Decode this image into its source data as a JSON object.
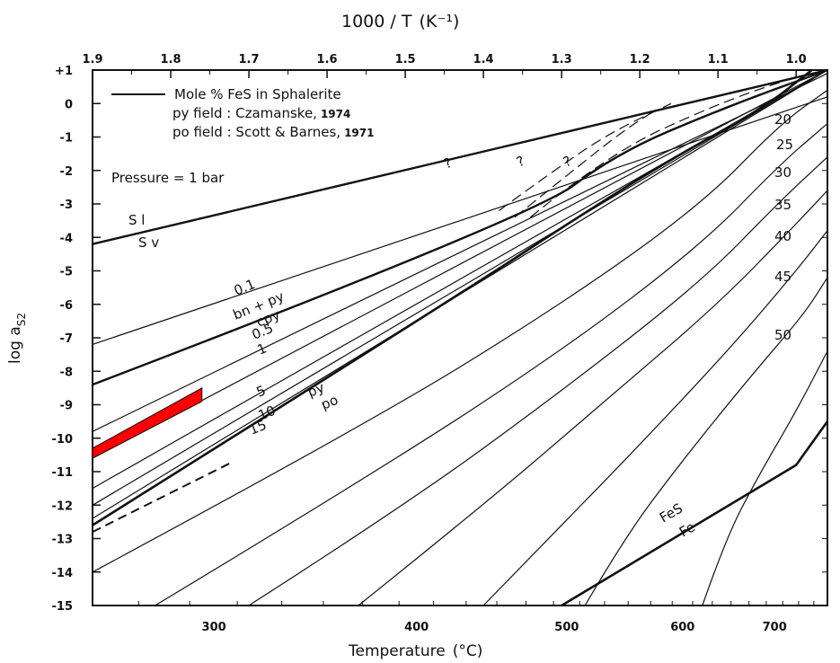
{
  "chart_data": {
    "type": "line",
    "xlabel_bottom": "Temperature",
    "xlabel_bottom_unit": "(°C)",
    "xlabel_top": "1000 / T",
    "xlabel_top_unit": "(K⁻¹)",
    "ylabel": "log a",
    "ylabel_sub": "S2",
    "xlim_inverse_T": [
      1.9,
      0.96
    ],
    "ylim": [
      -15,
      1
    ],
    "top_ticks": [
      1.9,
      1.8,
      1.7,
      1.6,
      1.5,
      1.4,
      1.3,
      1.2,
      1.1,
      1.0
    ],
    "top_tick_labels": [
      "1.9",
      "1.8",
      "1.7",
      "1.6",
      "1.5",
      "1.4",
      "1.3",
      "1.2",
      "1.1",
      "1.0"
    ],
    "bottom_ticks": [
      300,
      400,
      500,
      600,
      700
    ],
    "bottom_tick_labels": [
      "300",
      "400",
      "500",
      "600",
      "700"
    ],
    "y_ticks": [
      1,
      0,
      -1,
      -2,
      -3,
      -4,
      -5,
      -6,
      -7,
      -8,
      -9,
      -10,
      -11,
      -12,
      -13,
      -14,
      -15
    ],
    "y_tick_labels": [
      "+1",
      "0",
      "-1",
      "-2",
      "-3",
      "-4",
      "-5",
      "-6",
      "-7",
      "-8",
      "-9",
      "-10",
      "-11",
      "-12",
      "-13",
      "-14",
      "-15"
    ],
    "legend": {
      "line_label": "Mole % FeS in Sphalerite",
      "py_label": "py  field : Czamanske,",
      "py_year": "1974",
      "po_label": "po  field : Scott & Barnes,",
      "po_year": "1971",
      "pressure": "Pressure = 1 bar"
    },
    "boundaries": [
      {
        "labels": [
          "S l",
          "S v"
        ],
        "points": [
          [
            1.9,
            -4.2
          ],
          [
            0.96,
            1.0
          ]
        ]
      },
      {
        "labels": [
          "bn + py",
          "cpy"
        ],
        "points": [
          [
            1.9,
            -8.4
          ],
          [
            1.34,
            -3.4
          ],
          [
            1.23,
            -1.5
          ],
          [
            1.1,
            -0.2
          ],
          [
            0.96,
            1.0
          ]
        ]
      },
      {
        "labels": [
          "py",
          "po"
        ],
        "points": [
          [
            1.9,
            -12.6
          ],
          [
            1.45,
            -6.0
          ],
          [
            1.24,
            -2.8
          ],
          [
            1.14,
            -1.4
          ],
          [
            1.04,
            -0.1
          ],
          [
            0.98,
            1.0
          ]
        ]
      },
      {
        "labels": [
          "FeS",
          "Fe"
        ],
        "points": [
          [
            1.3,
            -15.0
          ],
          [
            1.0,
            -10.8
          ],
          [
            0.96,
            -9.5
          ]
        ]
      }
    ],
    "series": [
      {
        "name": "0.1",
        "values": [
          [
            1.9,
            -7.2
          ],
          [
            0.96,
            0.2
          ]
        ]
      },
      {
        "name": "0.5",
        "values": [
          [
            1.9,
            -9.8
          ],
          [
            0.96,
            0.9
          ]
        ]
      },
      {
        "name": "1",
        "values": [
          [
            1.9,
            -10.6
          ],
          [
            0.96,
            1.0
          ]
        ]
      },
      {
        "name": "5",
        "values": [
          [
            1.9,
            -11.5
          ],
          [
            0.96,
            1.0
          ]
        ]
      },
      {
        "name": "10",
        "values": [
          [
            1.9,
            -12.0
          ],
          [
            0.96,
            1.0
          ]
        ]
      },
      {
        "name": "15",
        "values": [
          [
            1.9,
            -12.4
          ],
          [
            0.96,
            1.0
          ]
        ]
      },
      {
        "name": "20",
        "values": [
          [
            1.9,
            -14.0
          ],
          [
            0.96,
            0.4
          ]
        ]
      },
      {
        "name": "25",
        "values": [
          [
            1.82,
            -15.0
          ],
          [
            0.96,
            -0.6
          ]
        ]
      },
      {
        "name": "30",
        "values": [
          [
            1.7,
            -15.0
          ],
          [
            0.96,
            -1.6
          ]
        ]
      },
      {
        "name": "35",
        "values": [
          [
            1.56,
            -15.0
          ],
          [
            0.96,
            -2.6
          ]
        ]
      },
      {
        "name": "40",
        "values": [
          [
            1.4,
            -15.0
          ],
          [
            0.96,
            -3.8
          ]
        ]
      },
      {
        "name": "45",
        "values": [
          [
            1.27,
            -15.0
          ],
          [
            0.96,
            -5.2
          ]
        ]
      },
      {
        "name": "50",
        "values": [
          [
            1.12,
            -15.0
          ],
          [
            0.96,
            -7.4
          ]
        ]
      }
    ],
    "highlight_region": {
      "color": "#ff0000",
      "points": [
        [
          1.9,
          -10.3
        ],
        [
          1.76,
          -8.5
        ],
        [
          1.76,
          -8.9
        ],
        [
          1.9,
          -10.6
        ]
      ]
    },
    "question_marks": [
      "?",
      "?",
      "?"
    ],
    "grid": false
  }
}
